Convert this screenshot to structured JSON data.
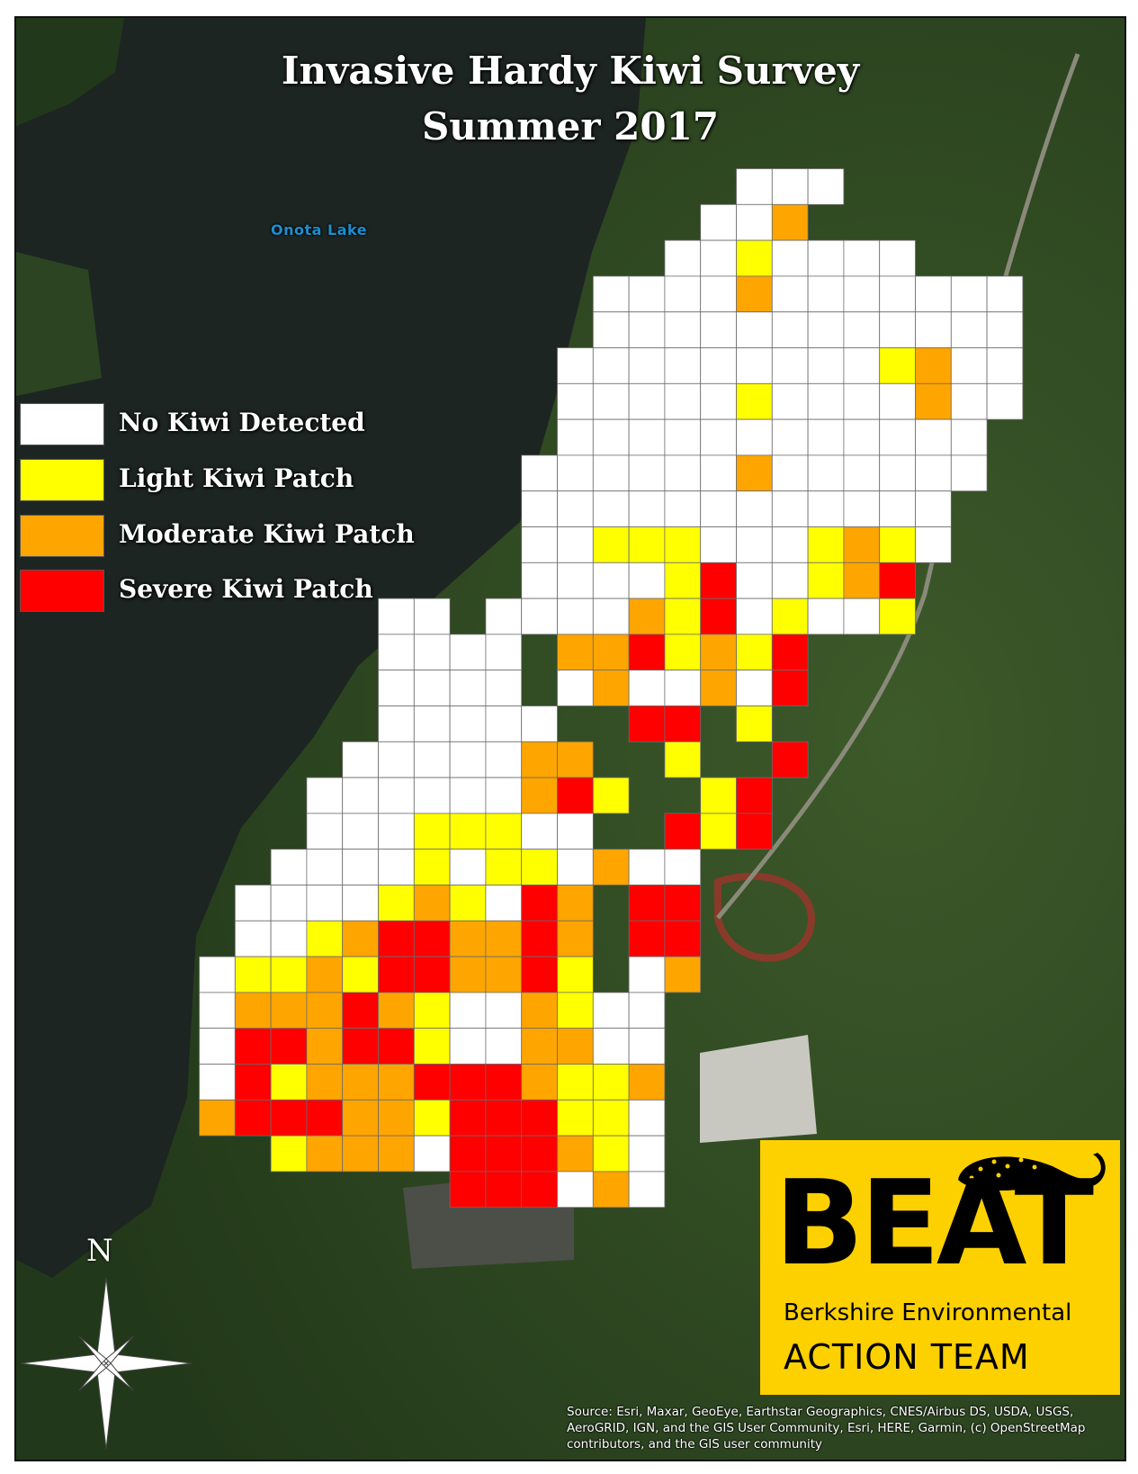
{
  "title": {
    "line1": "Invasive Hardy Kiwi Survey",
    "line2": "Summer 2017"
  },
  "place_label": "Onota Lake",
  "legend": [
    {
      "key": "W",
      "label": "No Kiwi Detected",
      "color": "#ffffff"
    },
    {
      "key": "Y",
      "label": "Light Kiwi Patch",
      "color": "#ffff00"
    },
    {
      "key": "O",
      "label": "Moderate Kiwi Patch",
      "color": "#ffa500"
    },
    {
      "key": "R",
      "label": "Severe Kiwi Patch",
      "color": "#ff0000"
    }
  ],
  "survey_grid_rows": [
    "...............WWW",
    "..............WWO",
    ".............WWYWWWW",
    "...........WWWWOWWWWWWW",
    "...........WWWWWWWWWWWW",
    "..........WWWWWWWWWYOWW",
    "..........WWWWWYWWWWOWW",
    "..........WWWWWWWWWWWW",
    ".........WWWWWWOWWWWWW",
    ".........WWWWWWWWWWWW",
    ".........WWYYYWWWYOYW",
    ".........WWWWYRWWYOR",
    ".....WW.WWWWOYRWYWWY",
    ".....WWWW.OORYOYR",
    ".....WWWW.WOWWOWR",
    ".....WWWWW..RR.Y",
    "....WWWWWOO..Y..R",
    "...WWWWWWORY..YR",
    "...WWWYYYWW..RYR",
    "..WWWWYWYYWOWW",
    ".WWWWYOYWRO.RR",
    ".WWYORROORO.RR",
    "WYYOYRROORY.WO",
    "WOOOROYWWOYWW",
    "WRRORRYWWOOWW",
    "WRYOOORRROYYO",
    "ORRROOYRRRYYW",
    "..YOOOWRRROYW",
    ".......RRRWOW"
  ],
  "north_label": "N",
  "logo": {
    "text": "BEAT",
    "line1": "Berkshire Environmental",
    "line2": "ACTION TEAM",
    "color": "#fdd000"
  },
  "attribution": "Source: Esri, Maxar, GeoEye, Earthstar Geographics, CNES/Airbus DS, USDA, USGS, AeroGRID, IGN, and the GIS User Community, Esri, HERE, Garmin, (c) OpenStreetMap contributors, and the GIS user community"
}
